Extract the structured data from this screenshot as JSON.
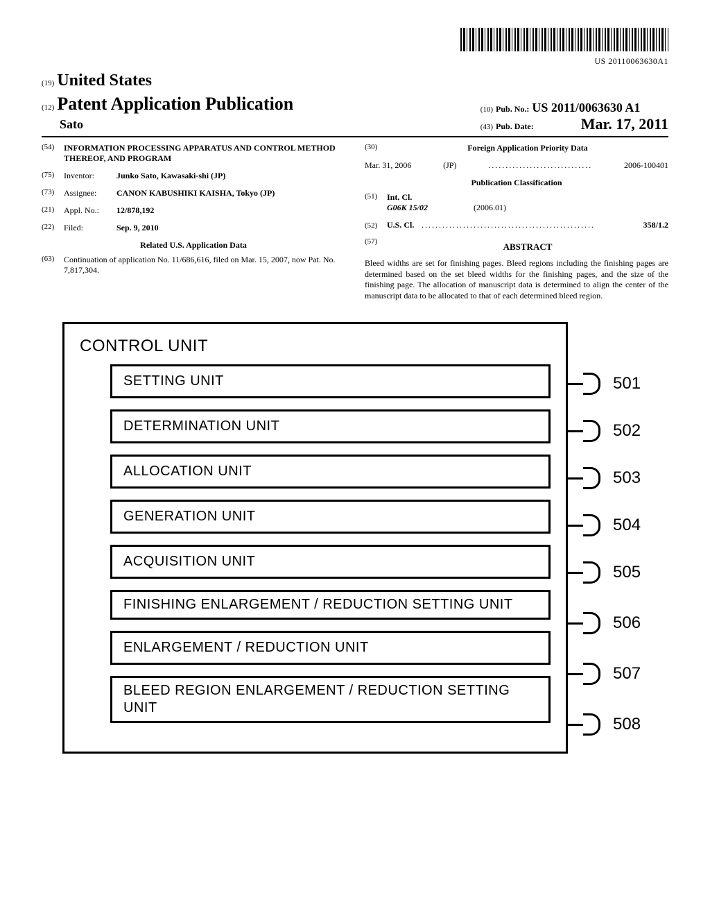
{
  "barcode_text": "US 20110063630A1",
  "header": {
    "country_code": "(19)",
    "country": "United States",
    "pub_type_code": "(12)",
    "pub_type": "Patent Application Publication",
    "author": "Sato",
    "pub_no_code": "(10)",
    "pub_no_label": "Pub. No.:",
    "pub_no_value": "US 2011/0063630 A1",
    "pub_date_code": "(43)",
    "pub_date_label": "Pub. Date:",
    "pub_date_value": "Mar. 17, 2011"
  },
  "left": {
    "title_code": "(54)",
    "title": "INFORMATION PROCESSING APPARATUS AND CONTROL METHOD THEREOF, AND PROGRAM",
    "inventor_code": "(75)",
    "inventor_label": "Inventor:",
    "inventor_value": "Junko Sato, Kawasaki-shi (JP)",
    "assignee_code": "(73)",
    "assignee_label": "Assignee:",
    "assignee_value": "CANON KABUSHIKI KAISHA, Tokyo (JP)",
    "appl_code": "(21)",
    "appl_label": "Appl. No.:",
    "appl_value": "12/878,192",
    "filed_code": "(22)",
    "filed_label": "Filed:",
    "filed_value": "Sep. 9, 2010",
    "related_title": "Related U.S. Application Data",
    "related_code": "(63)",
    "related_text": "Continuation of application No. 11/686,616, filed on Mar. 15, 2007, now Pat. No. 7,817,304."
  },
  "right": {
    "foreign_code": "(30)",
    "foreign_title": "Foreign Application Priority Data",
    "foreign_date": "Mar. 31, 2006",
    "foreign_country": "(JP)",
    "foreign_num": "2006-100401",
    "classification_title": "Publication Classification",
    "intcl_code": "(51)",
    "intcl_label": "Int. Cl.",
    "intcl_class": "G06K 15/02",
    "intcl_year": "(2006.01)",
    "uscl_code": "(52)",
    "uscl_label": "U.S. Cl.",
    "uscl_value": "358/1.2",
    "abstract_code": "(57)",
    "abstract_title": "ABSTRACT",
    "abstract_body": "Bleed widths are set for finishing pages. Bleed regions including the finishing pages are determined based on the set bleed widths for the finishing pages, and the size of the finishing page. The allocation of manuscript data is determined to align the center of the manuscript data to be allocated to that of each determined bleed region."
  },
  "figure": {
    "title": "CONTROL UNIT",
    "units": [
      {
        "label": "SETTING UNIT",
        "ref": "501"
      },
      {
        "label": "DETERMINATION UNIT",
        "ref": "502"
      },
      {
        "label": "ALLOCATION UNIT",
        "ref": "503"
      },
      {
        "label": "GENERATION UNIT",
        "ref": "504"
      },
      {
        "label": "ACQUISITION UNIT",
        "ref": "505"
      },
      {
        "label": "FINISHING ENLARGEMENT / REDUCTION SETTING UNIT",
        "ref": "506"
      },
      {
        "label": "ENLARGEMENT / REDUCTION UNIT",
        "ref": "507"
      },
      {
        "label": "BLEED REGION ENLARGEMENT / REDUCTION SETTING UNIT",
        "ref": "508"
      }
    ]
  }
}
